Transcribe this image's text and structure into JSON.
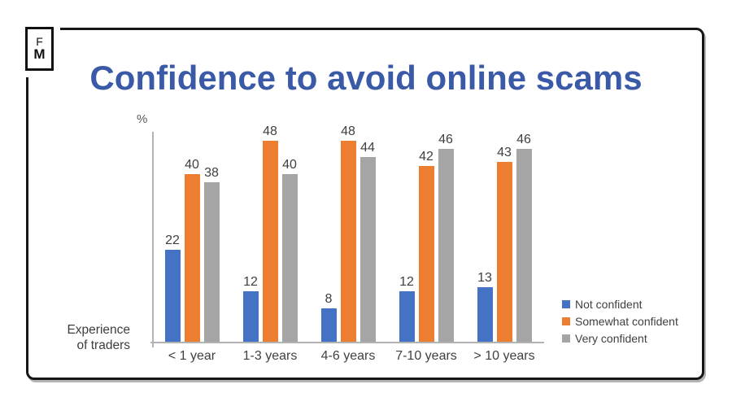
{
  "logo": {
    "line1": "F",
    "line2": "M"
  },
  "title": "Confidence to avoid online scams",
  "axis": {
    "y_unit_label": "%",
    "x_label_line1": "Experience",
    "x_label_line2": "of traders"
  },
  "colors": {
    "title_blue": "#3a5aa8",
    "series_blue": "#4472C4",
    "series_orange": "#ED7D31",
    "series_gray": "#A5A5A5",
    "axis_line": "#b3b3b3",
    "label_text": "#404040"
  },
  "chart_data": {
    "type": "bar",
    "title": "Confidence to avoid online scams",
    "categories": [
      "< 1 year",
      "1-3 years",
      "4-6 years",
      "7-10 years",
      "> 10 years"
    ],
    "series": [
      {
        "name": "Not confident",
        "color": "#4472C4",
        "values": [
          22,
          12,
          8,
          12,
          13
        ]
      },
      {
        "name": "Somewhat confident",
        "color": "#ED7D31",
        "values": [
          40,
          48,
          48,
          42,
          43
        ]
      },
      {
        "name": "Very confident",
        "color": "#A5A5A5",
        "values": [
          38,
          40,
          44,
          46,
          46
        ]
      }
    ],
    "xlabel": "Experience of traders",
    "ylabel": "%",
    "ylim": [
      0,
      50
    ],
    "grid": false,
    "legend_position": "right",
    "data_labels": true
  }
}
